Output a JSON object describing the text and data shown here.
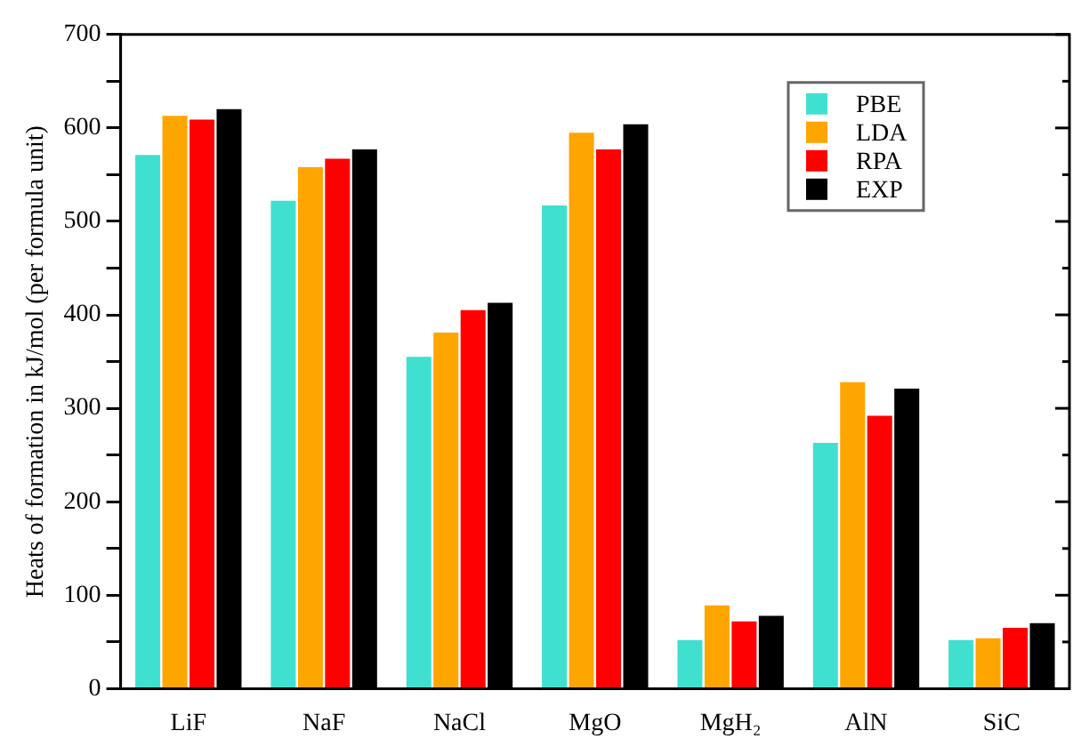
{
  "chart_data": {
    "type": "bar",
    "ylabel": "Heats of formation in kJ/mol (per formula unit)",
    "categories": [
      "LiF",
      "NaF",
      "NaCl",
      "MgO",
      "MgH₂",
      "AlN",
      "SiC"
    ],
    "series": [
      {
        "name": "PBE",
        "color": "#40e0d0",
        "values": [
          571,
          522,
          355,
          517,
          52,
          263,
          52
        ]
      },
      {
        "name": "LDA",
        "color": "#ffa500",
        "values": [
          613,
          558,
          381,
          595,
          89,
          328,
          54
        ]
      },
      {
        "name": "RPA",
        "color": "#ff0000",
        "values": [
          609,
          567,
          405,
          577,
          72,
          292,
          65
        ]
      },
      {
        "name": "EXP",
        "color": "#000000",
        "values": [
          620,
          577,
          413,
          604,
          78,
          321,
          70
        ]
      }
    ],
    "ylim": [
      0,
      700
    ],
    "yticks": [
      0,
      {
        "value": 50,
        "label": null
      },
      100,
      {
        "value": 150,
        "label": null
      },
      200,
      {
        "value": 250,
        "label": null
      },
      300,
      {
        "value": 350,
        "label": null
      },
      400,
      {
        "value": 450,
        "label": null
      },
      500,
      {
        "value": 550,
        "label": null
      },
      600,
      {
        "value": 650,
        "label": null
      },
      700
    ],
    "legend": "top right"
  }
}
